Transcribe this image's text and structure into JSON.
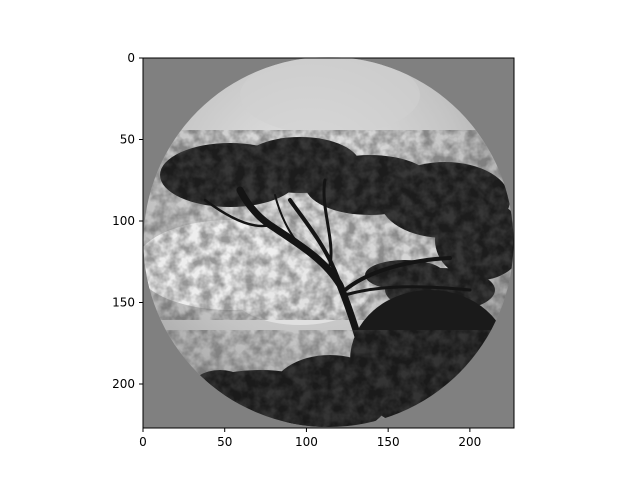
{
  "chart_data": {
    "type": "image",
    "title": "",
    "xlabel": "",
    "ylabel": "",
    "xlim": [
      0,
      227
    ],
    "ylim": [
      227,
      0
    ],
    "xticks": [
      0,
      50,
      100,
      150,
      200
    ],
    "yticks": [
      0,
      50,
      100,
      150,
      200
    ],
    "grid": false,
    "image": {
      "mask": "circle",
      "colormap": "gray",
      "background_color": "#808080",
      "subject": "tree silhouette against cloudy sky"
    }
  }
}
